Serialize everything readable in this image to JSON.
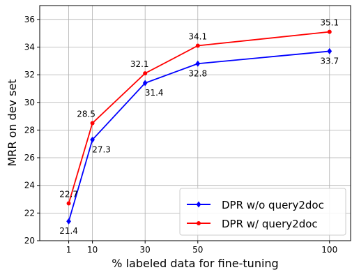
{
  "chart_data": {
    "type": "line",
    "xlabel": "% labeled data for fine-tuning",
    "ylabel": "MRR on dev set",
    "x": [
      1,
      10,
      30,
      50,
      100
    ],
    "xticks": [
      1,
      10,
      30,
      50,
      100
    ],
    "yticks": [
      20,
      22,
      24,
      26,
      28,
      30,
      32,
      34,
      36
    ],
    "xlim": [
      -10,
      108
    ],
    "ylim": [
      20,
      37
    ],
    "grid": true,
    "legend_position": "lower right",
    "series": [
      {
        "name": "DPR w/o query2doc",
        "color": "#0000ff",
        "marker": "diamond",
        "values": [
          21.4,
          27.3,
          31.4,
          32.8,
          33.7
        ],
        "labels": [
          "21.4",
          "27.3",
          "31.4",
          "32.8",
          "33.7"
        ]
      },
      {
        "name": "DPR w/ query2doc",
        "color": "#ff0000",
        "marker": "circle",
        "values": [
          22.7,
          28.5,
          32.1,
          34.1,
          35.1
        ],
        "labels": [
          "22.7",
          "28.5",
          "32.1",
          "34.1",
          "35.1"
        ]
      }
    ]
  }
}
